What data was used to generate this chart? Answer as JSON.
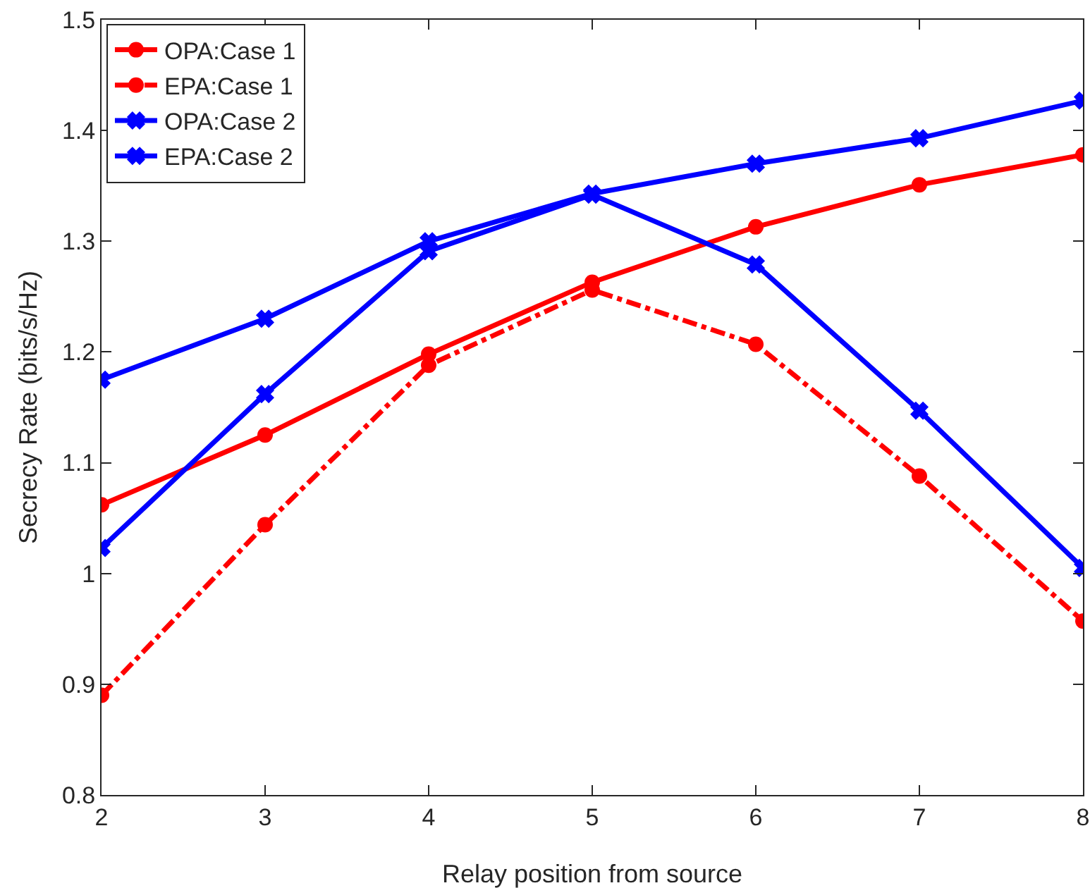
{
  "chart_data": {
    "type": "line",
    "xlabel": "Relay position from source",
    "ylabel": "Secrecy Rate (bits/s/Hz)",
    "x": [
      2,
      3,
      4,
      5,
      6,
      7,
      8
    ],
    "series": [
      {
        "name": "OPA:Case 1",
        "color": "#ff0000",
        "marker": "circle",
        "line_style": "solid",
        "values": [
          1.062,
          1.125,
          1.198,
          1.263,
          1.313,
          1.351,
          1.378
        ]
      },
      {
        "name": "EPA:Case 1",
        "color": "#ff0000",
        "marker": "circle",
        "line_style": "dashdot",
        "values": [
          0.89,
          1.044,
          1.188,
          1.256,
          1.207,
          1.088,
          0.957
        ]
      },
      {
        "name": "OPA:Case 2",
        "color": "#0000ff",
        "marker": "cross",
        "line_style": "solid",
        "values": [
          1.175,
          1.23,
          1.3,
          1.343,
          1.37,
          1.393,
          1.427
        ]
      },
      {
        "name": "EPA:Case 2",
        "color": "#0000ff",
        "marker": "cross",
        "line_style": "solid",
        "values": [
          1.023,
          1.162,
          1.291,
          1.342,
          1.279,
          1.147,
          1.005
        ]
      }
    ],
    "xlim": [
      2,
      8
    ],
    "xticks": [
      2,
      3,
      4,
      5,
      6,
      7,
      8
    ],
    "ylim": [
      0.8,
      1.5
    ],
    "yticks": [
      0.8,
      0.9,
      1,
      1.1,
      1.2,
      1.3,
      1.4,
      1.5
    ],
    "grid": false,
    "legend": "top left"
  }
}
